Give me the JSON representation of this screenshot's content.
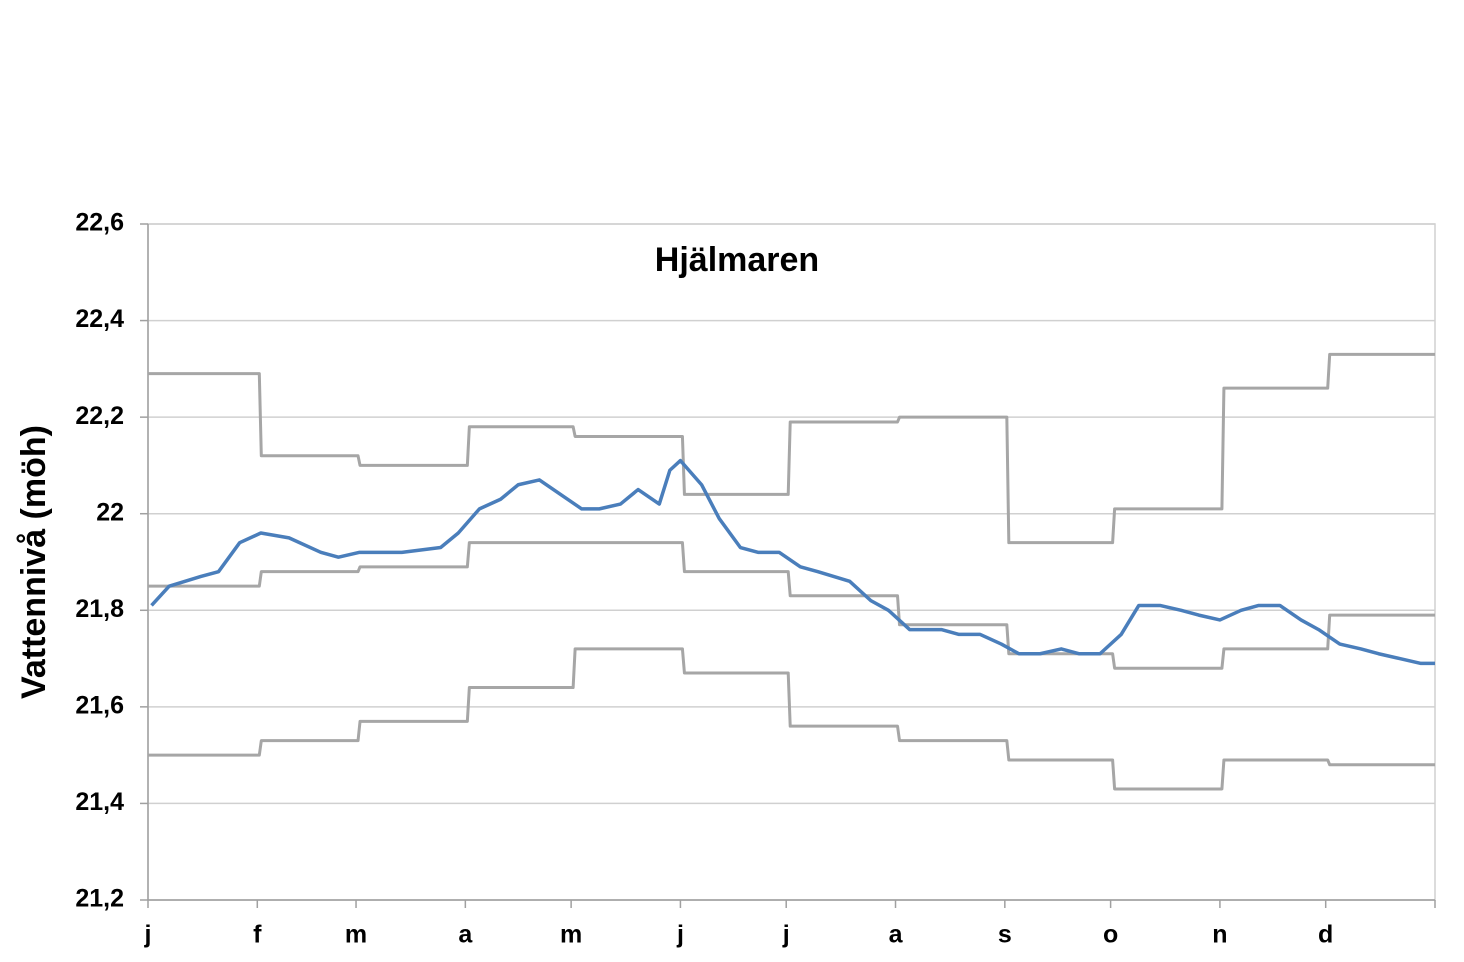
{
  "chart_data": {
    "type": "line",
    "title": "Hjälmaren",
    "y_label": "Vattennivå (möh)",
    "xlim": [
      0,
      365
    ],
    "xticks": [
      {
        "value": 0,
        "label": "j"
      },
      {
        "value": 31,
        "label": "f"
      },
      {
        "value": 59,
        "label": "m"
      },
      {
        "value": 90,
        "label": "a"
      },
      {
        "value": 120,
        "label": "m"
      },
      {
        "value": 151,
        "label": "j"
      },
      {
        "value": 181,
        "label": "j"
      },
      {
        "value": 212,
        "label": "a"
      },
      {
        "value": 243,
        "label": "s"
      },
      {
        "value": 273,
        "label": "o"
      },
      {
        "value": 304,
        "label": "n"
      },
      {
        "value": 334,
        "label": "d"
      }
    ],
    "ylim": [
      21.2,
      22.6
    ],
    "yticks": [
      {
        "value": 21.2,
        "label": "21,2"
      },
      {
        "value": 21.4,
        "label": "21,4"
      },
      {
        "value": 21.6,
        "label": "21,6"
      },
      {
        "value": 21.8,
        "label": "21,8"
      },
      22,
      {
        "value": 22.2,
        "label": "22,2"
      },
      {
        "value": 22.4,
        "label": "22,4"
      },
      {
        "value": 22.6,
        "label": "22,6"
      }
    ],
    "grid": true,
    "series": [
      {
        "color": "#a6a6a6",
        "step": true,
        "x": [
          0,
          31,
          59,
          90,
          120,
          151,
          181,
          212,
          243,
          273,
          304,
          334
        ],
        "values": [
          22.29,
          22.12,
          22.1,
          22.18,
          22.16,
          22.04,
          22.19,
          22.2,
          21.94,
          22.01,
          22.26,
          22.33
        ]
      },
      {
        "color": "#a6a6a6",
        "step": true,
        "x": [
          0,
          31,
          59,
          90,
          120,
          151,
          181,
          212,
          243,
          273,
          304,
          334
        ],
        "values": [
          21.85,
          21.88,
          21.89,
          21.94,
          21.94,
          21.88,
          21.83,
          21.77,
          21.71,
          21.68,
          21.72,
          21.79
        ]
      },
      {
        "color": "#a6a6a6",
        "step": true,
        "x": [
          0,
          31,
          59,
          90,
          120,
          151,
          181,
          212,
          243,
          273,
          304,
          334
        ],
        "values": [
          21.5,
          21.53,
          21.57,
          21.64,
          21.72,
          21.67,
          21.56,
          21.53,
          21.49,
          21.43,
          21.49,
          21.48
        ]
      },
      {
        "color": "#4a7ebb",
        "step": false,
        "x": [
          1,
          6,
          15,
          20,
          26,
          32,
          40,
          49,
          54,
          60,
          72,
          83,
          88,
          94,
          100,
          105,
          111,
          117,
          123,
          128,
          134,
          139,
          145,
          148,
          151,
          157,
          162,
          168,
          173,
          179,
          185,
          190,
          199,
          205,
          210,
          216,
          225,
          230,
          236,
          242,
          247,
          253,
          259,
          264,
          270,
          276,
          281,
          287,
          293,
          298,
          304,
          310,
          315,
          321,
          327,
          332,
          338,
          344,
          349,
          355,
          361,
          365
        ],
        "values": [
          21.81,
          21.85,
          21.87,
          21.88,
          21.94,
          21.96,
          21.95,
          21.92,
          21.91,
          21.92,
          21.92,
          21.93,
          21.96,
          22.01,
          22.03,
          22.06,
          22.07,
          22.04,
          22.01,
          22.01,
          22.02,
          22.05,
          22.02,
          22.09,
          22.11,
          22.06,
          21.99,
          21.93,
          21.92,
          21.92,
          21.89,
          21.88,
          21.86,
          21.82,
          21.8,
          21.76,
          21.76,
          21.75,
          21.75,
          21.73,
          21.71,
          21.71,
          21.72,
          21.71,
          21.71,
          21.75,
          21.81,
          21.81,
          21.8,
          21.79,
          21.78,
          21.8,
          21.81,
          21.81,
          21.78,
          21.76,
          21.73,
          21.72,
          21.71,
          21.7,
          21.69,
          21.69
        ]
      }
    ]
  }
}
